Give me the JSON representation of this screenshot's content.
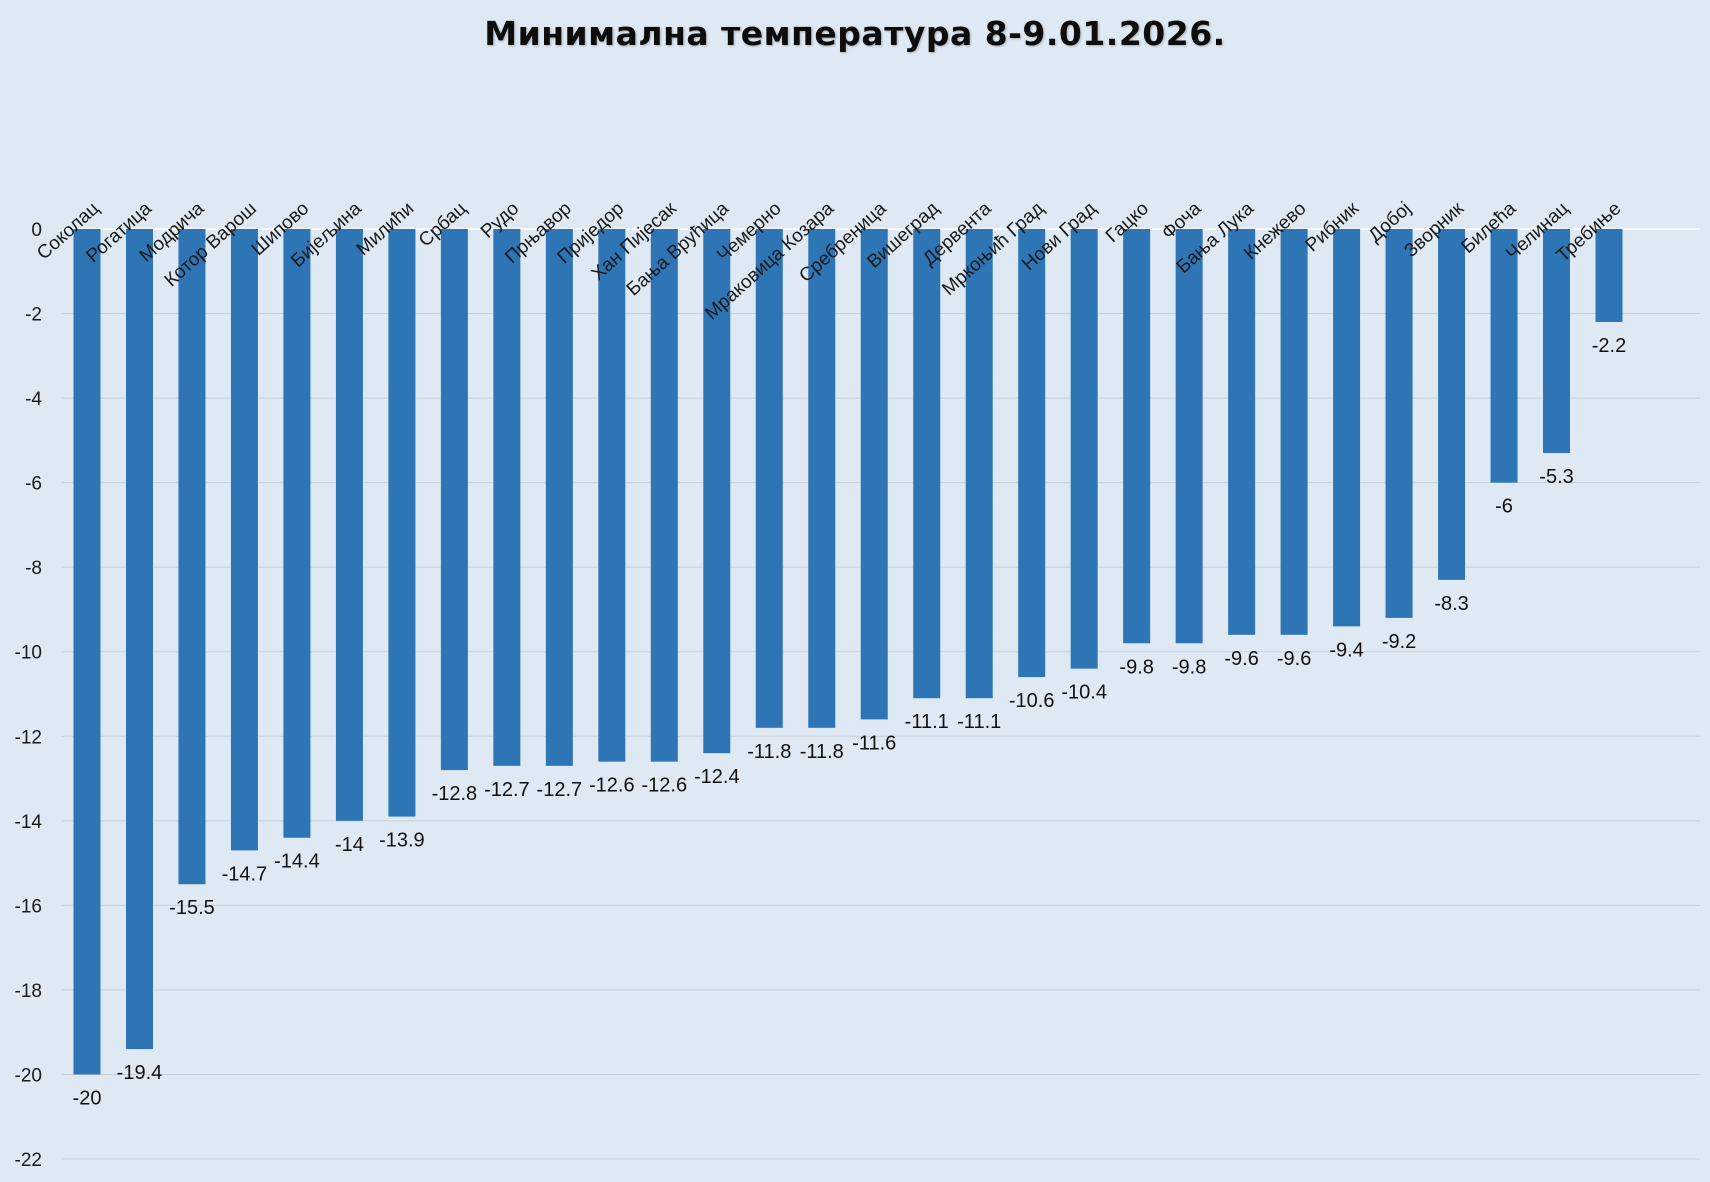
{
  "chart_data": {
    "type": "bar",
    "title": "Минимална температура 8-9.01.2026.",
    "xlabel": "",
    "ylabel": "",
    "ylim": [
      -22,
      0
    ],
    "y_ticks": [
      0,
      -2,
      -4,
      -6,
      -8,
      -10,
      -12,
      -14,
      -16,
      -18,
      -20,
      -22
    ],
    "grid": true,
    "bar_color": "#2e75b6",
    "background_color": "#dfe9f4",
    "grid_color": "#c8d0d8",
    "categories": [
      "Соколац",
      "Рогатица",
      "Модрича",
      "Котор Варош",
      "Шипово",
      "Бијељина",
      "Милићи",
      "Србац",
      "Рудо",
      "Прњавор",
      "Приједор",
      "Хан Пијесак",
      "Бања Врућица",
      "Чемерно",
      "Мраковица Козара",
      "Сребреница",
      "Вишеград",
      "Дервента",
      "Мркоњић Град",
      "Нови Град",
      "Гацко",
      "Фоча",
      "Бања Лука",
      "Кнежево",
      "Рибник",
      "Добој",
      "Зворник",
      "Билећа",
      "Челинац",
      "Требиње"
    ],
    "values": [
      -20,
      -19.4,
      -15.5,
      -14.7,
      -14.4,
      -14,
      -13.9,
      -12.8,
      -12.7,
      -12.7,
      -12.6,
      -12.6,
      -12.4,
      -11.8,
      -11.8,
      -11.6,
      -11.1,
      -11.1,
      -10.6,
      -10.4,
      -9.8,
      -9.8,
      -9.6,
      -9.6,
      -9.4,
      -9.2,
      -8.3,
      -6,
      -5.3,
      -2.2
    ]
  }
}
